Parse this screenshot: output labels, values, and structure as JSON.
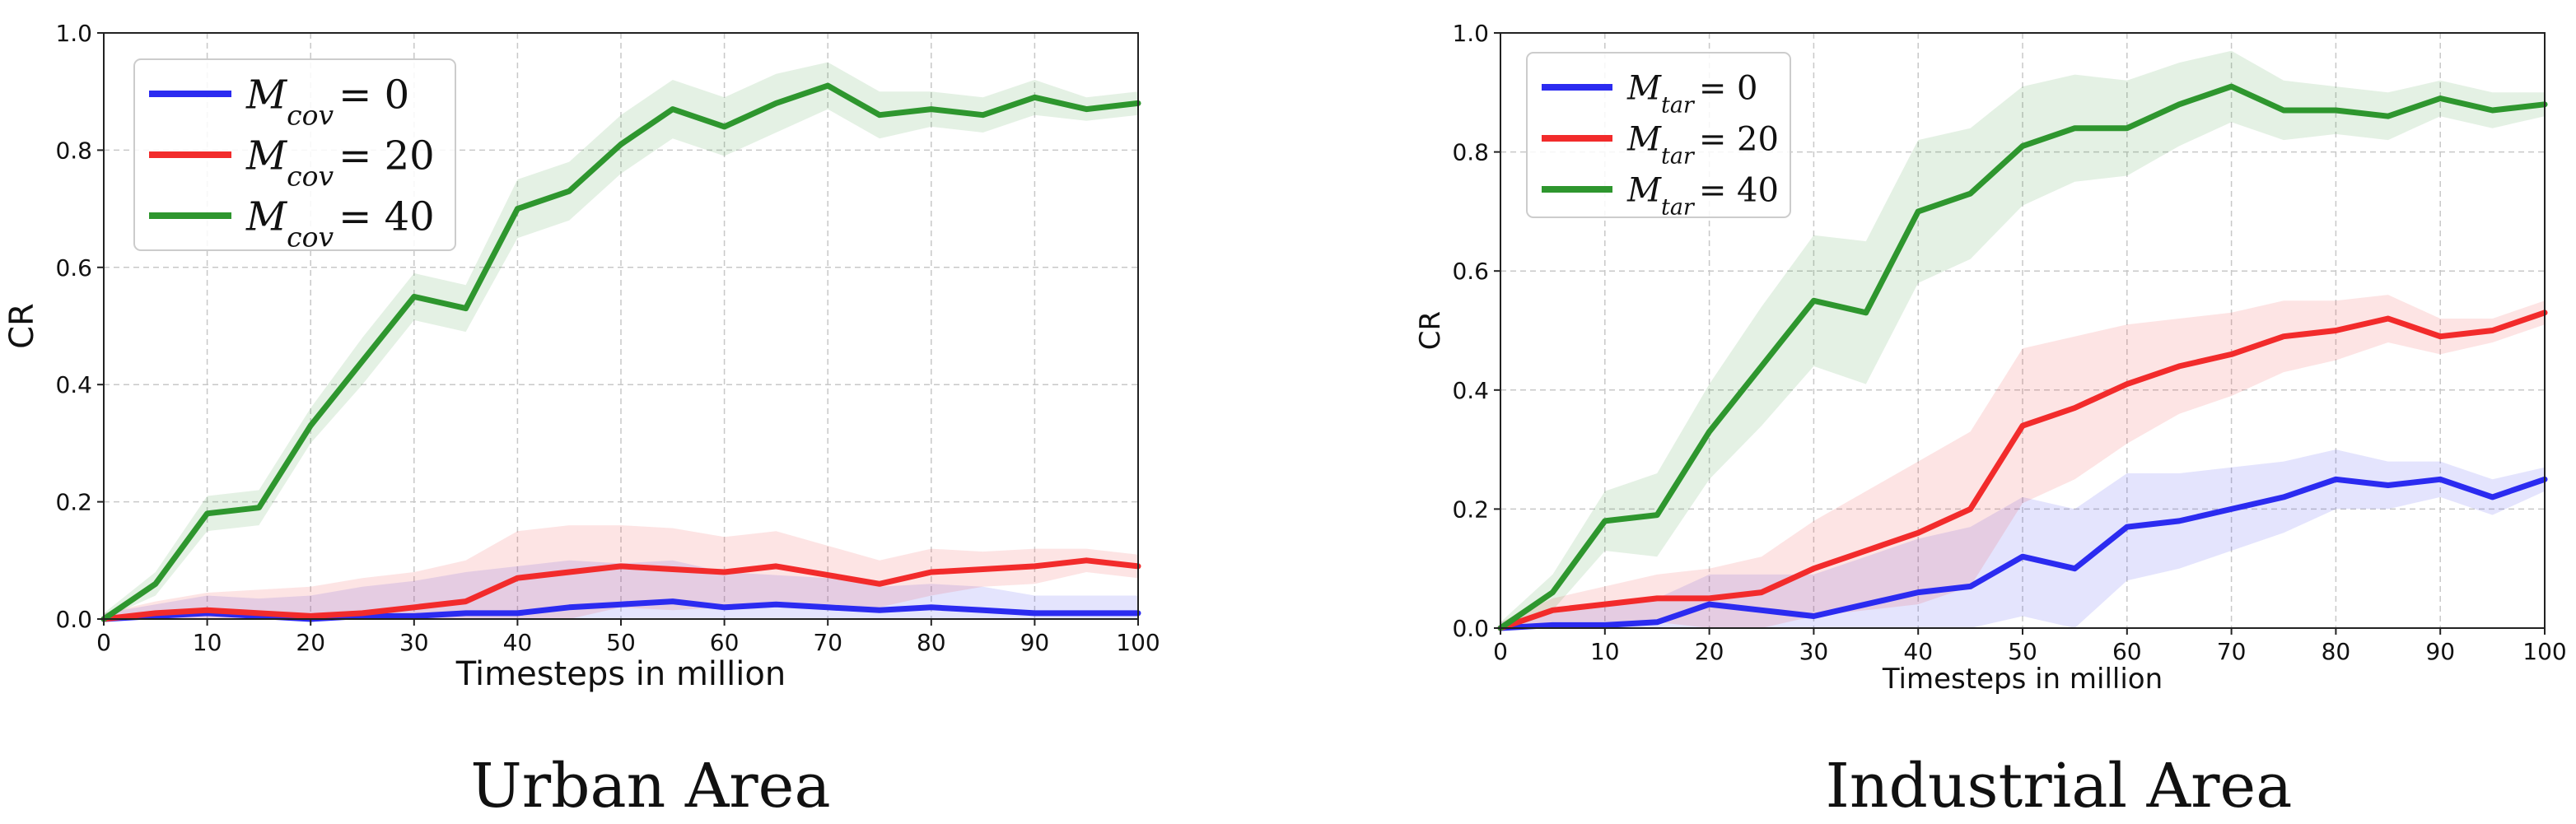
{
  "captions": [
    "Urban Area",
    "Industrial Area"
  ],
  "colors": {
    "blue": "#2b2bf0",
    "red": "#f22b2b",
    "green": "#2e962e"
  },
  "chart_data": [
    {
      "type": "line",
      "caption": "Urban Area",
      "title": "",
      "xlabel": "Timesteps in million",
      "ylabel": "CR",
      "xlim": [
        0,
        100
      ],
      "ylim": [
        0,
        1.0
      ],
      "xticks": [
        0,
        10,
        20,
        30,
        40,
        50,
        60,
        70,
        80,
        90,
        100
      ],
      "yticks": [
        0.0,
        0.2,
        0.4,
        0.6,
        0.8,
        1.0
      ],
      "ytick_labels": [
        "0.0",
        "0.2",
        "0.4",
        "0.6",
        "0.8",
        "1.0"
      ],
      "grid": true,
      "legend": "top-left",
      "legend_sub": "cov",
      "series": [
        {
          "name": "M_cov = 0",
          "value": "0",
          "color": "#2b2bf0",
          "x": [
            0,
            5,
            10,
            15,
            20,
            25,
            30,
            35,
            40,
            45,
            50,
            55,
            60,
            65,
            70,
            75,
            80,
            85,
            90,
            95,
            100
          ],
          "y": [
            0.0,
            0.005,
            0.01,
            0.005,
            0.0,
            0.005,
            0.005,
            0.01,
            0.01,
            0.02,
            0.025,
            0.03,
            0.02,
            0.025,
            0.02,
            0.015,
            0.02,
            0.015,
            0.01,
            0.01,
            0.01
          ],
          "band": [
            0.01,
            0.02,
            0.03,
            0.03,
            0.04,
            0.05,
            0.06,
            0.07,
            0.08,
            0.08,
            0.07,
            0.07,
            0.06,
            0.05,
            0.05,
            0.04,
            0.04,
            0.04,
            0.03,
            0.03,
            0.03
          ]
        },
        {
          "name": "M_cov = 20",
          "value": "20",
          "color": "#f22b2b",
          "x": [
            0,
            5,
            10,
            15,
            20,
            25,
            30,
            35,
            40,
            45,
            50,
            55,
            60,
            65,
            70,
            75,
            80,
            85,
            90,
            95,
            100
          ],
          "y": [
            0.0,
            0.01,
            0.015,
            0.01,
            0.005,
            0.01,
            0.02,
            0.03,
            0.07,
            0.08,
            0.09,
            0.085,
            0.08,
            0.09,
            0.075,
            0.06,
            0.08,
            0.085,
            0.09,
            0.1,
            0.09
          ],
          "band": [
            0.01,
            0.02,
            0.03,
            0.04,
            0.05,
            0.06,
            0.06,
            0.07,
            0.08,
            0.08,
            0.07,
            0.07,
            0.06,
            0.06,
            0.05,
            0.04,
            0.04,
            0.03,
            0.03,
            0.02,
            0.02
          ]
        },
        {
          "name": "M_cov = 40",
          "value": "40",
          "color": "#2e962e",
          "x": [
            0,
            5,
            10,
            15,
            20,
            25,
            30,
            35,
            40,
            45,
            50,
            55,
            60,
            65,
            70,
            75,
            80,
            85,
            90,
            95,
            100
          ],
          "y": [
            0.0,
            0.06,
            0.18,
            0.19,
            0.33,
            0.44,
            0.55,
            0.53,
            0.7,
            0.73,
            0.81,
            0.87,
            0.84,
            0.88,
            0.91,
            0.86,
            0.87,
            0.86,
            0.89,
            0.87,
            0.88
          ],
          "band": [
            0.01,
            0.02,
            0.03,
            0.03,
            0.03,
            0.04,
            0.04,
            0.04,
            0.05,
            0.05,
            0.05,
            0.05,
            0.05,
            0.05,
            0.04,
            0.04,
            0.03,
            0.03,
            0.03,
            0.02,
            0.02
          ]
        }
      ]
    },
    {
      "type": "line",
      "caption": "Industrial Area",
      "title": "",
      "xlabel": "Timesteps in million",
      "ylabel": "CR",
      "xlim": [
        0,
        100
      ],
      "ylim": [
        0,
        1.0
      ],
      "xticks": [
        0,
        10,
        20,
        30,
        40,
        50,
        60,
        70,
        80,
        90,
        100
      ],
      "yticks": [
        0.0,
        0.2,
        0.4,
        0.6,
        0.8,
        1.0
      ],
      "ytick_labels": [
        "0.0",
        "0.2",
        "0.4",
        "0.6",
        "0.8",
        "1.0"
      ],
      "grid": true,
      "legend": "top-left",
      "legend_sub": "tar",
      "series": [
        {
          "name": "M_tar = 0",
          "value": "0",
          "color": "#2b2bf0",
          "x": [
            0,
            5,
            10,
            15,
            20,
            25,
            30,
            35,
            40,
            45,
            50,
            55,
            60,
            65,
            70,
            75,
            80,
            85,
            90,
            95,
            100
          ],
          "y": [
            0.0,
            0.005,
            0.005,
            0.01,
            0.04,
            0.03,
            0.02,
            0.04,
            0.06,
            0.07,
            0.12,
            0.1,
            0.17,
            0.18,
            0.2,
            0.22,
            0.25,
            0.24,
            0.25,
            0.22,
            0.25
          ],
          "band": [
            0.01,
            0.02,
            0.03,
            0.04,
            0.05,
            0.06,
            0.07,
            0.08,
            0.09,
            0.1,
            0.1,
            0.1,
            0.09,
            0.08,
            0.07,
            0.06,
            0.05,
            0.04,
            0.03,
            0.03,
            0.02
          ]
        },
        {
          "name": "M_tar = 20",
          "value": "20",
          "color": "#f22b2b",
          "x": [
            0,
            5,
            10,
            15,
            20,
            25,
            30,
            35,
            40,
            45,
            50,
            55,
            60,
            65,
            70,
            75,
            80,
            85,
            90,
            95,
            100
          ],
          "y": [
            0.0,
            0.03,
            0.04,
            0.05,
            0.05,
            0.06,
            0.1,
            0.13,
            0.16,
            0.2,
            0.34,
            0.37,
            0.41,
            0.44,
            0.46,
            0.49,
            0.5,
            0.52,
            0.49,
            0.5,
            0.53
          ],
          "band": [
            0.01,
            0.02,
            0.03,
            0.04,
            0.05,
            0.06,
            0.08,
            0.1,
            0.12,
            0.13,
            0.13,
            0.12,
            0.1,
            0.08,
            0.07,
            0.06,
            0.05,
            0.04,
            0.03,
            0.02,
            0.02
          ]
        },
        {
          "name": "M_tar = 40",
          "value": "40",
          "color": "#2e962e",
          "x": [
            0,
            5,
            10,
            15,
            20,
            25,
            30,
            35,
            40,
            45,
            50,
            55,
            60,
            65,
            70,
            75,
            80,
            85,
            90,
            95,
            100
          ],
          "y": [
            0.0,
            0.06,
            0.18,
            0.19,
            0.33,
            0.44,
            0.55,
            0.53,
            0.7,
            0.73,
            0.81,
            0.84,
            0.84,
            0.88,
            0.91,
            0.87,
            0.87,
            0.86,
            0.89,
            0.87,
            0.88
          ],
          "band": [
            0.01,
            0.03,
            0.05,
            0.07,
            0.08,
            0.1,
            0.11,
            0.12,
            0.12,
            0.11,
            0.1,
            0.09,
            0.08,
            0.07,
            0.06,
            0.05,
            0.04,
            0.04,
            0.03,
            0.03,
            0.02
          ]
        }
      ]
    }
  ]
}
